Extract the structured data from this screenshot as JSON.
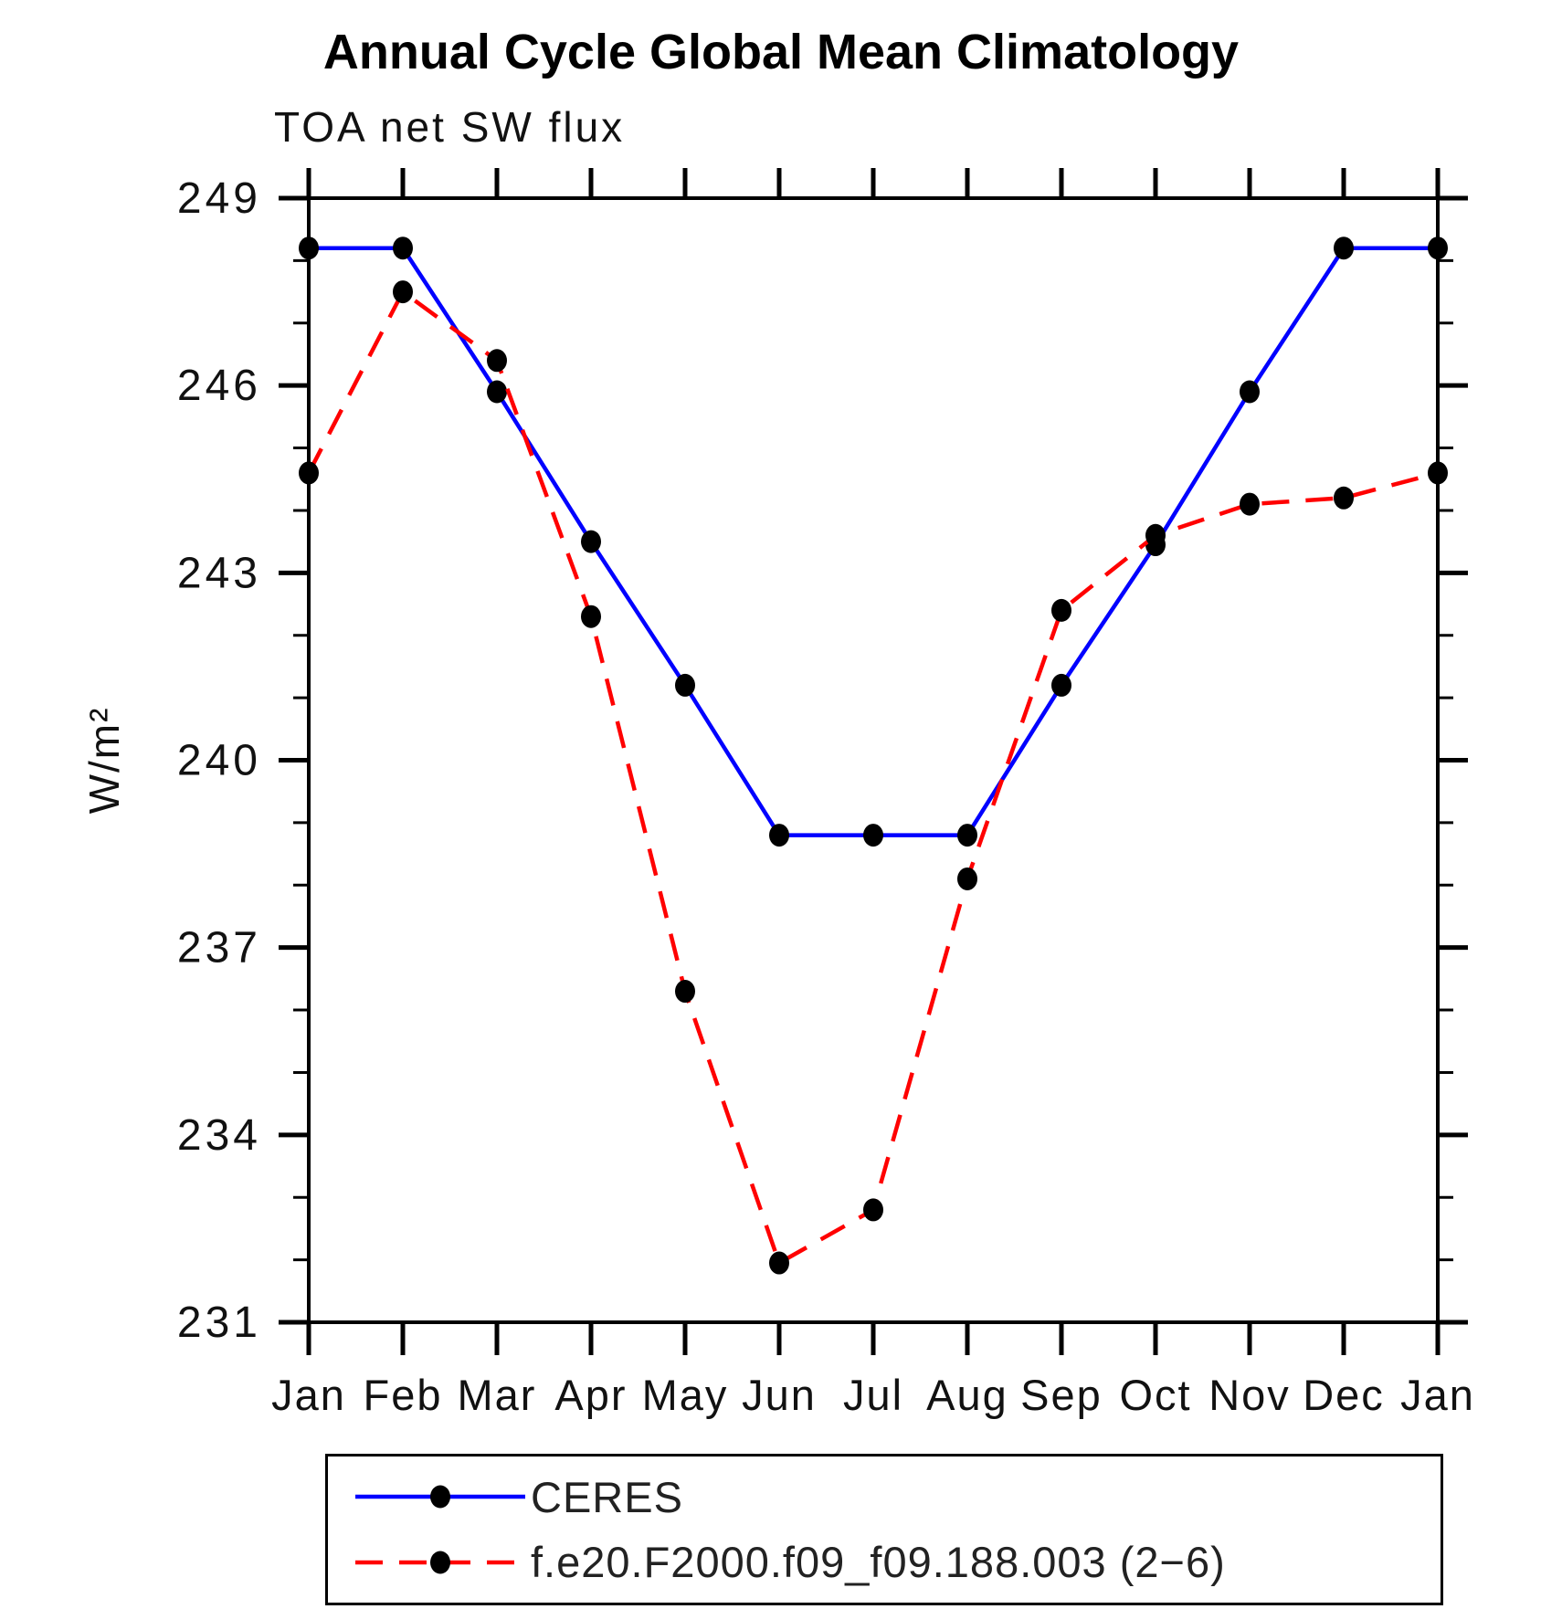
{
  "title": "Annual Cycle Global Mean Climatology",
  "subtitle": "TOA net SW flux",
  "chart_data": {
    "type": "line",
    "title": "Annual Cycle Global Mean Climatology",
    "subtitle": "TOA net SW flux",
    "xlabel": "",
    "ylabel": "W/m²",
    "ylim": [
      231,
      249
    ],
    "yticks_major": [
      231,
      234,
      237,
      240,
      243,
      246,
      249
    ],
    "ytick_minor_step": 1,
    "grid": false,
    "legend_position": "bottom",
    "categories": [
      "Jan",
      "Feb",
      "Mar",
      "Apr",
      "May",
      "Jun",
      "Jul",
      "Aug",
      "Sep",
      "Oct",
      "Nov",
      "Dec",
      "Jan"
    ],
    "series": [
      {
        "name": "CERES",
        "color": "#0000ff",
        "line_style": "solid",
        "marker": "filled-circle",
        "marker_color": "#000000",
        "values": [
          248.2,
          248.2,
          245.9,
          243.5,
          241.2,
          238.8,
          238.8,
          238.8,
          241.2,
          243.45,
          245.9,
          248.2,
          248.2
        ]
      },
      {
        "name": "f.e20.F2000.f09_f09.188.003 (2−6)",
        "color": "#ff0000",
        "line_style": "dashed",
        "marker": "filled-circle",
        "marker_color": "#000000",
        "values": [
          244.6,
          247.5,
          246.4,
          242.3,
          236.3,
          231.95,
          232.8,
          238.1,
          242.4,
          243.6,
          244.1,
          244.2,
          244.6
        ]
      }
    ]
  }
}
